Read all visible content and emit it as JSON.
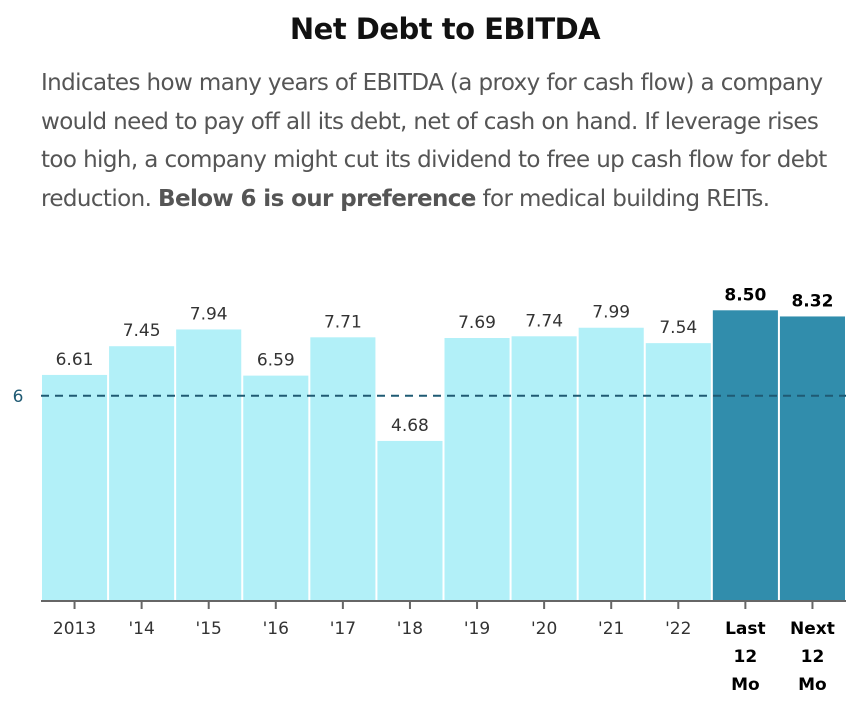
{
  "header": {
    "title": "Net Debt to EBITDA",
    "description_parts": [
      "Indicates how many years of EBITDA (a proxy for cash flow) a company would need to pay off all its debt, net of cash on hand. If leverage rises too high, a company might cut its dividend to free up cash flow for debt reduction. ",
      "Below 6 is our preference",
      " for medical building REITs."
    ]
  },
  "colors": {
    "historical_bar": "#b2f0f8",
    "projected_bar": "#318dac",
    "reference_line": "#1f5a73",
    "axis": "#666666",
    "label_text": "#333333",
    "bold_label_text": "#000000"
  },
  "chart_data": {
    "type": "bar",
    "title": "Net Debt to EBITDA",
    "xlabel": "",
    "ylabel": "",
    "ylim": [
      0,
      8.8
    ],
    "grid": false,
    "categories": [
      "2013",
      "'14",
      "'15",
      "'16",
      "'17",
      "'18",
      "'19",
      "'20",
      "'21",
      "'22",
      "Last 12 Mo",
      "Next 12 Mo"
    ],
    "category_lines": [
      [
        "2013"
      ],
      [
        "'14"
      ],
      [
        "'15"
      ],
      [
        "'16"
      ],
      [
        "'17"
      ],
      [
        "'18"
      ],
      [
        "'19"
      ],
      [
        "'20"
      ],
      [
        "'21"
      ],
      [
        "'22"
      ],
      [
        "Last",
        "12",
        "Mo"
      ],
      [
        "Next",
        "12",
        "Mo"
      ]
    ],
    "values": [
      6.61,
      7.45,
      7.94,
      6.59,
      7.71,
      4.68,
      7.69,
      7.74,
      7.99,
      7.54,
      8.5,
      8.32
    ],
    "value_labels": [
      "6.61",
      "7.45",
      "7.94",
      "6.59",
      "7.71",
      "4.68",
      "7.69",
      "7.74",
      "7.99",
      "7.54",
      "8.50",
      "8.32"
    ],
    "highlighted": [
      false,
      false,
      false,
      false,
      false,
      false,
      false,
      false,
      false,
      false,
      true,
      true
    ],
    "reference_line": {
      "value": 6,
      "label": "6",
      "style": "dashed"
    }
  }
}
